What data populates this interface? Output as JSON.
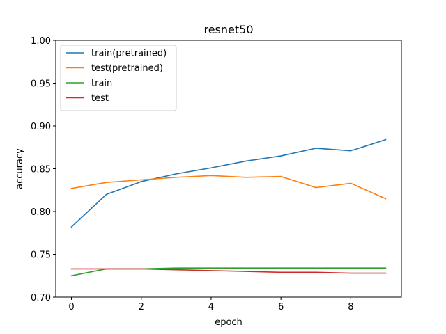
{
  "chart_data": {
    "type": "line",
    "title": "resnet50",
    "xlabel": "epoch",
    "ylabel": "accuracy",
    "xlim": [
      -0.45,
      9.45
    ],
    "ylim": [
      0.7,
      1.0
    ],
    "xticks": [
      0,
      2,
      4,
      6,
      8
    ],
    "yticks": [
      0.7,
      0.75,
      0.8,
      0.85,
      0.9,
      0.95,
      1.0
    ],
    "ytick_labels": [
      "0.70",
      "0.75",
      "0.80",
      "0.85",
      "0.90",
      "0.95",
      "1.00"
    ],
    "legend_position": "top-left",
    "grid": false,
    "x": [
      0,
      1,
      2,
      3,
      4,
      5,
      6,
      7,
      8,
      9
    ],
    "series": [
      {
        "name": "train(pretrained)",
        "color": "#1f77b4",
        "values": [
          0.782,
          0.82,
          0.835,
          0.844,
          0.851,
          0.859,
          0.865,
          0.874,
          0.871,
          0.884
        ]
      },
      {
        "name": "test(pretrained)",
        "color": "#ff7f0e",
        "values": [
          0.827,
          0.834,
          0.837,
          0.84,
          0.842,
          0.84,
          0.841,
          0.828,
          0.833,
          0.815
        ]
      },
      {
        "name": "train",
        "color": "#2ca02c",
        "values": [
          0.725,
          0.733,
          0.733,
          0.734,
          0.734,
          0.734,
          0.734,
          0.734,
          0.734,
          0.734
        ]
      },
      {
        "name": "test",
        "color": "#d62728",
        "values": [
          0.733,
          0.733,
          0.733,
          0.732,
          0.731,
          0.73,
          0.729,
          0.729,
          0.728,
          0.728
        ]
      }
    ]
  }
}
